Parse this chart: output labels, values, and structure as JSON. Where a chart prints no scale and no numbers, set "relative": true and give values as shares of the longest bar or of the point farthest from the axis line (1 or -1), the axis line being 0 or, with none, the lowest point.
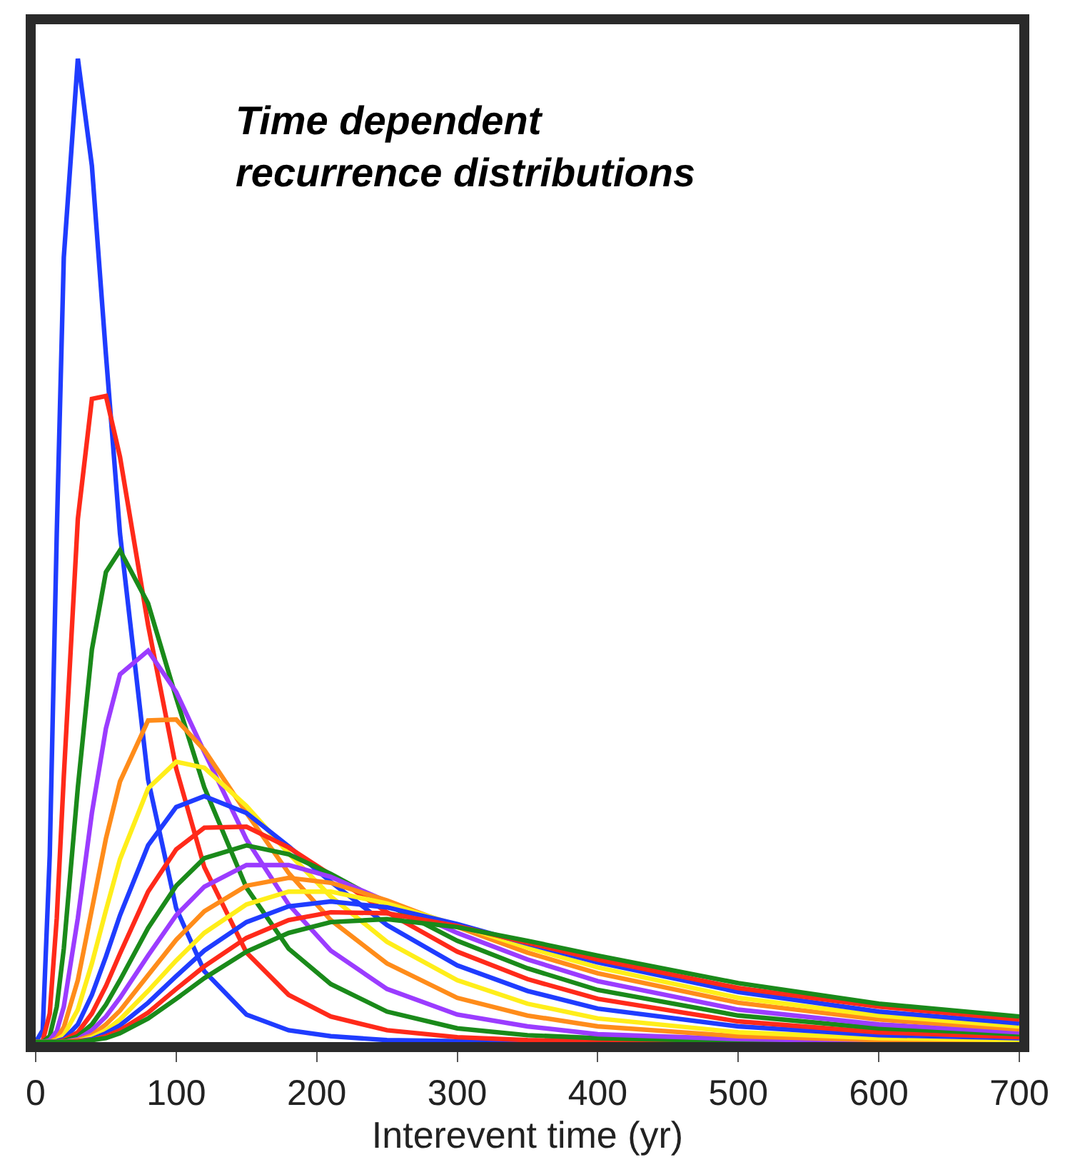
{
  "chart_data": {
    "type": "line",
    "title": "Time dependent\nrecurrence distributions",
    "xlabel": "Interevent time (yr)",
    "relative": true,
    "marker": "none",
    "line_style": "solid",
    "x": [
      0,
      5,
      10,
      15,
      20,
      30,
      40,
      50,
      60,
      80,
      100,
      120,
      150,
      180,
      210,
      250,
      300,
      350,
      400,
      500,
      600,
      700
    ],
    "xlim": [
      0,
      700
    ],
    "xticks": [
      0,
      100,
      200,
      300,
      400,
      500,
      600,
      700
    ],
    "series": [
      {
        "color": "#1f3cff",
        "values": [
          0,
          0.012,
          0.19,
          0.517,
          0.798,
          1,
          0.891,
          0.699,
          0.517,
          0.267,
          0.136,
          0.072,
          0.028,
          0.012,
          0.006,
          0.002,
          0.001,
          0,
          0,
          0,
          0,
          0
        ]
      },
      {
        "color": "#ff2a1a",
        "values": [
          0,
          0.001,
          0.029,
          0.126,
          0.27,
          0.532,
          0.654,
          0.657,
          0.595,
          0.424,
          0.278,
          0.178,
          0.091,
          0.048,
          0.026,
          0.012,
          0.005,
          0.002,
          0.001,
          0,
          0,
          0
        ]
      },
      {
        "color": "#1a8a1a",
        "values": [
          0,
          0,
          0.006,
          0.036,
          0.095,
          0.259,
          0.399,
          0.478,
          0.5,
          0.446,
          0.35,
          0.259,
          0.157,
          0.095,
          0.059,
          0.031,
          0.014,
          0.007,
          0.004,
          0.001,
          0.001,
          0
        ]
      },
      {
        "color": "#9b3cff",
        "values": [
          0,
          0,
          0.002,
          0.011,
          0.036,
          0.126,
          0.233,
          0.319,
          0.374,
          0.398,
          0.356,
          0.295,
          0.206,
          0.14,
          0.093,
          0.054,
          0.028,
          0.016,
          0.008,
          0.003,
          0.001,
          0
        ]
      },
      {
        "color": "#ff8c1a",
        "values": [
          0,
          0,
          0,
          0.004,
          0.015,
          0.063,
          0.135,
          0.207,
          0.265,
          0.327,
          0.328,
          0.297,
          0.233,
          0.172,
          0.124,
          0.08,
          0.045,
          0.027,
          0.016,
          0.006,
          0.002,
          0.001
        ]
      },
      {
        "color": "#ffee1a",
        "values": [
          0,
          0,
          0,
          0.002,
          0.007,
          0.033,
          0.08,
          0.134,
          0.186,
          0.258,
          0.285,
          0.279,
          0.24,
          0.192,
          0.148,
          0.102,
          0.063,
          0.039,
          0.024,
          0.01,
          0.004,
          0.002
        ]
      },
      {
        "color": "#1f3cff",
        "values": [
          0,
          0,
          0,
          0.001,
          0.003,
          0.018,
          0.048,
          0.087,
          0.129,
          0.2,
          0.239,
          0.25,
          0.233,
          0.199,
          0.163,
          0.119,
          0.078,
          0.052,
          0.034,
          0.016,
          0.007,
          0.004
        ]
      },
      {
        "color": "#ff2a1a",
        "values": [
          0,
          0,
          0,
          0,
          0.002,
          0.01,
          0.029,
          0.057,
          0.09,
          0.153,
          0.196,
          0.218,
          0.219,
          0.198,
          0.17,
          0.132,
          0.092,
          0.064,
          0.044,
          0.021,
          0.01,
          0.005
        ]
      },
      {
        "color": "#1a8a1a",
        "values": [
          0,
          0,
          0,
          0,
          0.001,
          0.006,
          0.018,
          0.038,
          0.063,
          0.116,
          0.159,
          0.187,
          0.2,
          0.191,
          0.171,
          0.14,
          0.103,
          0.075,
          0.053,
          0.027,
          0.014,
          0.008
        ]
      },
      {
        "color": "#9b3cff",
        "values": [
          0,
          0,
          0,
          0,
          0,
          0.003,
          0.012,
          0.026,
          0.045,
          0.088,
          0.129,
          0.158,
          0.18,
          0.18,
          0.168,
          0.143,
          0.111,
          0.084,
          0.062,
          0.033,
          0.018,
          0.01
        ]
      },
      {
        "color": "#ff8c1a",
        "values": [
          0,
          0,
          0,
          0,
          0,
          0.002,
          0.007,
          0.018,
          0.032,
          0.068,
          0.104,
          0.133,
          0.159,
          0.167,
          0.162,
          0.144,
          0.117,
          0.091,
          0.07,
          0.04,
          0.023,
          0.013
        ]
      },
      {
        "color": "#ffee1a",
        "values": [
          0,
          0,
          0,
          0,
          0,
          0.001,
          0.005,
          0.012,
          0.023,
          0.052,
          0.083,
          0.111,
          0.14,
          0.153,
          0.153,
          0.141,
          0.119,
          0.096,
          0.076,
          0.045,
          0.027,
          0.016
        ]
      },
      {
        "color": "#1f3cff",
        "values": [
          0,
          0,
          0,
          0,
          0,
          0.001,
          0.003,
          0.009,
          0.017,
          0.04,
          0.067,
          0.093,
          0.122,
          0.138,
          0.143,
          0.137,
          0.12,
          0.1,
          0.081,
          0.051,
          0.031,
          0.019
        ]
      },
      {
        "color": "#ff2a1a",
        "values": [
          0,
          0,
          0,
          0,
          0,
          0.001,
          0.002,
          0.006,
          0.012,
          0.03,
          0.054,
          0.077,
          0.106,
          0.124,
          0.132,
          0.131,
          0.118,
          0.101,
          0.084,
          0.055,
          0.036,
          0.023
        ]
      },
      {
        "color": "#1a8a1a",
        "values": [
          0,
          0,
          0,
          0,
          0,
          0,
          0.002,
          0.004,
          0.009,
          0.024,
          0.044,
          0.065,
          0.092,
          0.111,
          0.122,
          0.125,
          0.117,
          0.103,
          0.088,
          0.06,
          0.039,
          0.026
        ]
      }
    ]
  }
}
